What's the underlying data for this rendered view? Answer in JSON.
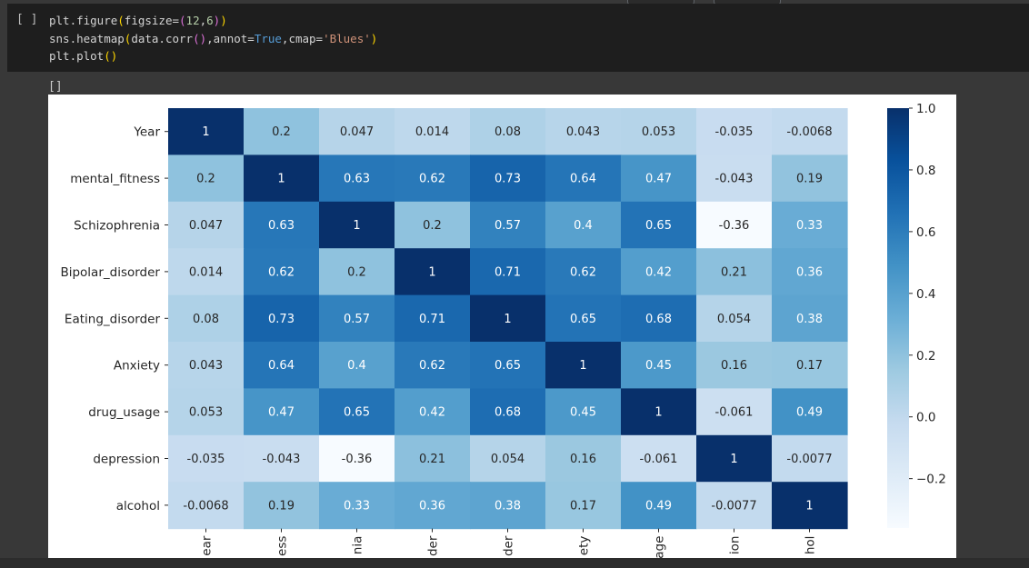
{
  "code_cell": {
    "run_indicator": "[ ]",
    "lines": [
      "plt.figure(figsize=(12,6))",
      "sns.heatmap(data.corr(),annot=True,cmap='Blues')",
      "plt.plot()"
    ]
  },
  "output": {
    "text": "[]"
  },
  "colors": {
    "cmap": "Blues",
    "page_bg": "#383838",
    "cell_bg": "#1e1e1e"
  },
  "chart_data": {
    "type": "heatmap",
    "title": "",
    "xlabel": "",
    "ylabel": "",
    "cmap": "Blues",
    "vmin": -0.36,
    "vmax": 1.0,
    "rows": [
      "Year",
      "mental_fitness",
      "Schizophrenia",
      "Bipolar_disorder",
      "Eating_disorder",
      "Anxiety",
      "drug_usage",
      "depression",
      "alcohol"
    ],
    "columns": [
      "Year",
      "mental_fitness",
      "Schizophrenia",
      "Bipolar_disorder",
      "Eating_disorder",
      "Anxiety",
      "drug_usage",
      "depression",
      "alcohol"
    ],
    "x_tick_labels_visible": [
      "ear",
      "ess",
      "nia",
      "der",
      "der",
      "ety",
      "age",
      "ion",
      "hol"
    ],
    "values": [
      [
        1,
        0.2,
        0.047,
        0.014,
        0.08,
        0.043,
        0.053,
        -0.035,
        -0.0068
      ],
      [
        0.2,
        1,
        0.63,
        0.62,
        0.73,
        0.64,
        0.47,
        -0.043,
        0.19
      ],
      [
        0.047,
        0.63,
        1,
        0.2,
        0.57,
        0.4,
        0.65,
        -0.36,
        0.33
      ],
      [
        0.014,
        0.62,
        0.2,
        1,
        0.71,
        0.62,
        0.42,
        0.21,
        0.36
      ],
      [
        0.08,
        0.73,
        0.57,
        0.71,
        1,
        0.65,
        0.68,
        0.054,
        0.38
      ],
      [
        0.043,
        0.64,
        0.4,
        0.62,
        0.65,
        1,
        0.45,
        0.16,
        0.17
      ],
      [
        0.053,
        0.47,
        0.65,
        0.42,
        0.68,
        0.45,
        1,
        -0.061,
        0.49
      ],
      [
        -0.035,
        -0.043,
        -0.36,
        0.21,
        0.054,
        0.16,
        -0.061,
        1,
        -0.0077
      ],
      [
        -0.0068,
        0.19,
        0.33,
        0.36,
        0.38,
        0.17,
        0.49,
        -0.0077,
        1
      ]
    ],
    "colorbar": {
      "ticks": [
        1.0,
        0.8,
        0.6,
        0.4,
        0.2,
        0.0,
        -0.2
      ],
      "tick_labels": [
        "1.0",
        "0.8",
        "0.6",
        "0.4",
        "0.2",
        "0.0",
        "−0.2"
      ]
    }
  }
}
